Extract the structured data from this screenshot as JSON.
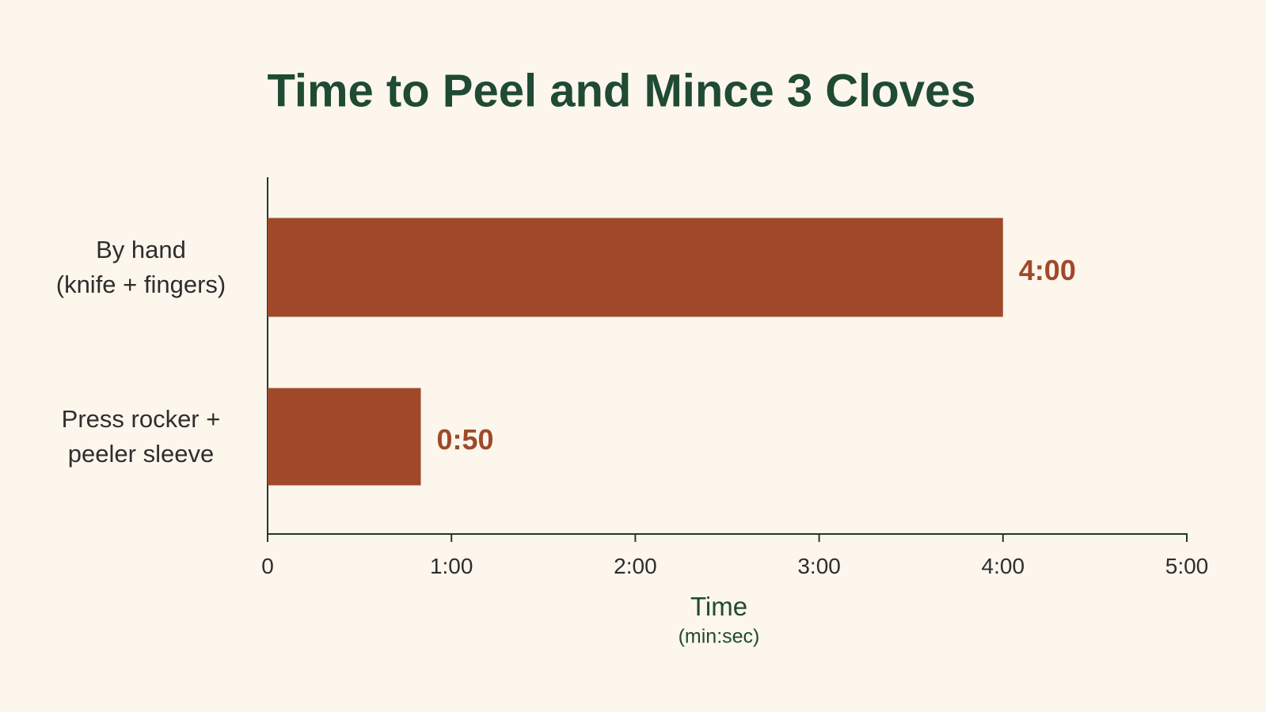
{
  "chart_data": {
    "type": "barh",
    "title": "Time to Peel and Mince 3 Cloves",
    "categories": [
      "By hand\n(knife + fingers)",
      "Press rocker +\npeeler sleeve"
    ],
    "values": [
      240,
      50
    ],
    "value_labels": [
      "4:00",
      "0:50"
    ],
    "color": "#a0492a",
    "xlabel": "Time",
    "xlabel_sub": "(min:sec)",
    "xlim": [
      0,
      300
    ],
    "xticks": [
      0,
      {
        "value": 60,
        "label": "1:00"
      },
      {
        "value": 120,
        "label": "2:00"
      },
      {
        "value": 180,
        "label": "3:00"
      },
      {
        "value": 240,
        "label": "4:00"
      },
      {
        "value": 300,
        "label": "5:00"
      }
    ],
    "grid": false
  }
}
